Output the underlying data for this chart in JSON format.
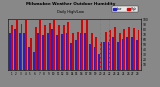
{
  "title": "Milwaukee Weather Outdoor Humidity",
  "subtitle": "Daily High/Low",
  "days": [
    "1",
    "2",
    "3",
    "4",
    "5",
    "6",
    "7",
    "8",
    "9",
    "10",
    "11",
    "12",
    "13",
    "14",
    "15",
    "16",
    "17",
    "18",
    "19",
    "20",
    "21",
    "22",
    "23",
    "24",
    "25",
    "26",
    "27",
    "28"
  ],
  "highs": [
    88,
    99,
    90,
    99,
    62,
    85,
    99,
    88,
    92,
    99,
    88,
    88,
    95,
    72,
    75,
    99,
    99,
    72,
    65,
    55,
    75,
    78,
    85,
    72,
    80,
    85,
    82,
    78
  ],
  "lows": [
    72,
    80,
    72,
    72,
    45,
    35,
    72,
    68,
    72,
    80,
    68,
    70,
    72,
    52,
    58,
    72,
    72,
    50,
    45,
    30,
    55,
    55,
    65,
    55,
    60,
    65,
    65,
    58
  ],
  "high_color": "#dd0000",
  "low_color": "#2222cc",
  "background_color": "#888888",
  "plot_bg_color": "#888888",
  "ylim": [
    0,
    100
  ],
  "yticks": [
    10,
    20,
    30,
    40,
    50,
    60,
    70,
    80,
    90,
    100
  ],
  "dashed_lines": [
    19,
    21
  ],
  "legend_labels": [
    "Low",
    "High"
  ]
}
